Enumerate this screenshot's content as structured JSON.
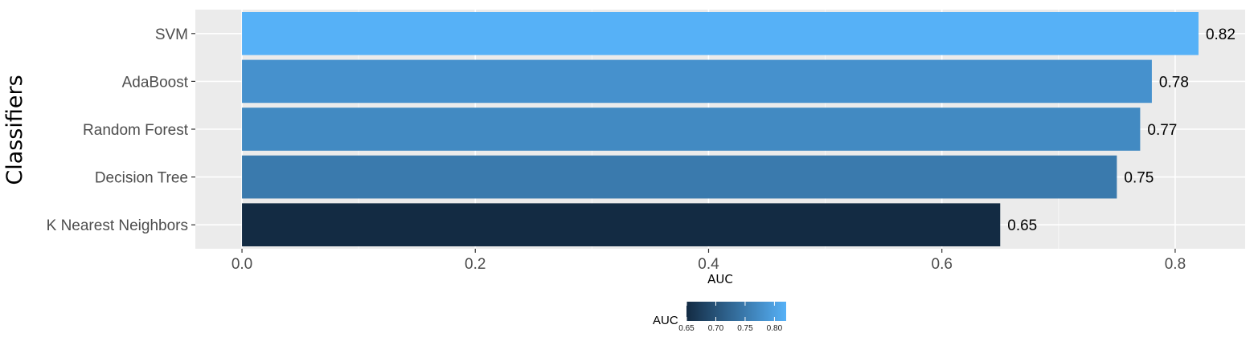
{
  "chart_data": {
    "type": "bar",
    "orientation": "horizontal",
    "categories": [
      "SVM",
      "AdaBoost",
      "Random Forest",
      "Decision Tree",
      "K Nearest Neighbors"
    ],
    "values": [
      0.82,
      0.78,
      0.77,
      0.75,
      0.65
    ],
    "data_labels": [
      "0.82",
      "0.78",
      "0.77",
      "0.75",
      "0.65"
    ],
    "xlabel": "AUC",
    "ylabel": "Classifiers",
    "xlim": [
      -0.04,
      0.86
    ],
    "x_ticks": [
      0.0,
      0.2,
      0.4,
      0.6,
      0.8
    ],
    "x_tick_labels": [
      "0.0",
      "0.2",
      "0.4",
      "0.6",
      "0.8"
    ],
    "grid": true,
    "panel_background": "#ebebeb",
    "legend": {
      "position": "bottom",
      "title": "AUC",
      "type": "colorbar",
      "range": [
        0.65,
        0.82
      ],
      "ticks": [
        0.65,
        0.7,
        0.75,
        0.8
      ],
      "tick_labels": [
        "0.65",
        "0.70",
        "0.75",
        "0.80"
      ],
      "low_color": "#132b43",
      "high_color": "#56b1f7"
    }
  }
}
